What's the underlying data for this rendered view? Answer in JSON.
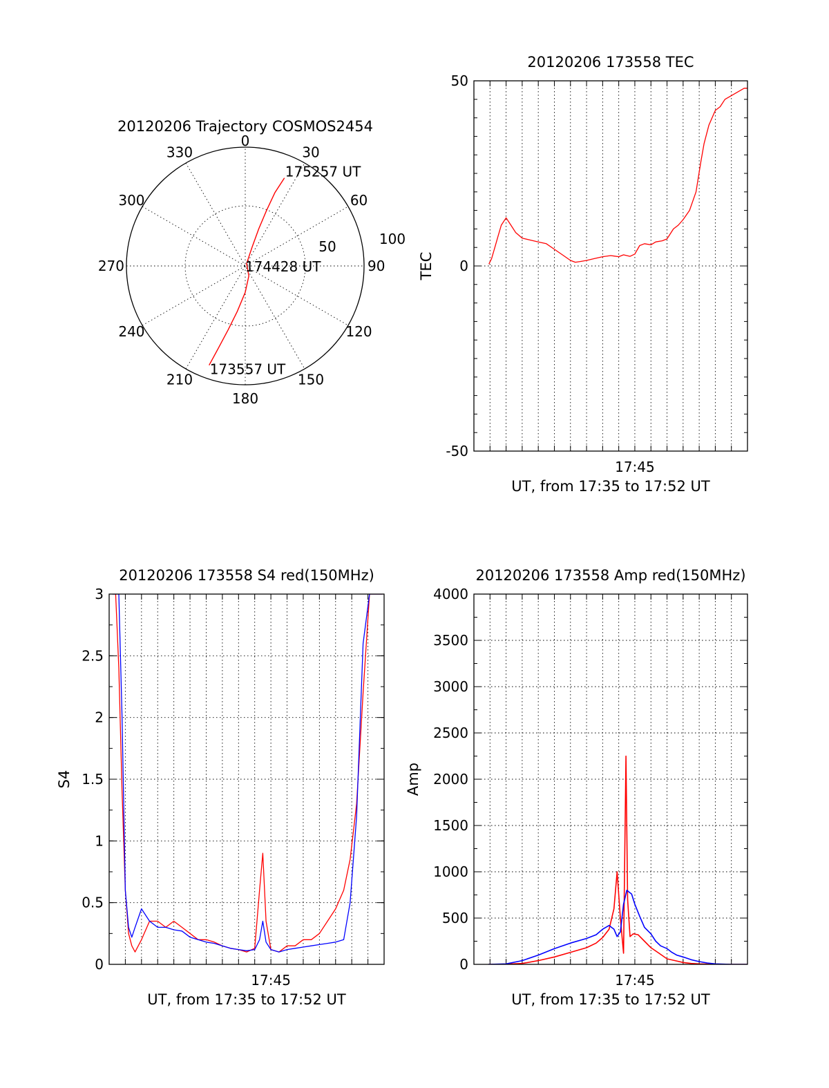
{
  "chart_data": [
    {
      "type": "polar",
      "title": "20120206 Trajectory COSMOS2454",
      "angle_labels": [
        "0",
        "30",
        "60",
        "90",
        "120",
        "150",
        "180",
        "210",
        "240",
        "270",
        "300",
        "330"
      ],
      "radial_labels": [
        "50",
        "100"
      ],
      "grid": true,
      "series": [
        {
          "color": "#ff0000",
          "points": [
            {
              "azimuth": 200,
              "elevation": 10
            },
            {
              "azimuth": 198,
              "elevation": 25
            },
            {
              "azimuth": 195,
              "elevation": 40
            },
            {
              "azimuth": 190,
              "elevation": 55
            },
            {
              "azimuth": 180,
              "elevation": 70
            },
            {
              "azimuth": 160,
              "elevation": 82
            },
            {
              "azimuth": 30,
              "elevation": 88
            },
            {
              "azimuth": 20,
              "elevation": 75
            },
            {
              "azimuth": 20,
              "elevation": 60
            },
            {
              "azimuth": 21,
              "elevation": 45
            },
            {
              "azimuth": 22,
              "elevation": 30
            },
            {
              "azimuth": 24,
              "elevation": 17
            }
          ]
        }
      ],
      "annotations": [
        {
          "text": "175257 UT",
          "azimuth": 24,
          "elevation": 17
        },
        {
          "text": "174428 UT",
          "azimuth": 90,
          "elevation": 89
        },
        {
          "text": "173557 UT",
          "azimuth": 200,
          "elevation": 10
        }
      ]
    },
    {
      "type": "line",
      "title": "20120206 173558 TEC",
      "xlabel": "UT, from 17:35 to 17:52 UT",
      "ylabel": "TEC",
      "x_ticks": [
        {
          "value": 45,
          "label": "17:45"
        }
      ],
      "y_ticks": [
        {
          "value": -50,
          "label": "-50"
        },
        {
          "value": 0,
          "label": "0"
        },
        {
          "value": 50,
          "label": "50"
        }
      ],
      "xlim": [
        35,
        52
      ],
      "ylim": [
        -50,
        50
      ],
      "grid": true,
      "series": [
        {
          "color": "#ff0000",
          "x": [
            35.93,
            36.1,
            36.3,
            36.5,
            36.7,
            37.0,
            37.3,
            37.6,
            38.0,
            38.5,
            39.0,
            39.5,
            40.0,
            40.5,
            41.0,
            41.3,
            41.6,
            42.0,
            42.5,
            43.0,
            43.5,
            44.0,
            44.3,
            44.7,
            45.0,
            45.3,
            45.6,
            46.0,
            46.3,
            46.7,
            47.0,
            47.4,
            47.7,
            48.0,
            48.4,
            48.8,
            49.1,
            49.3,
            49.6,
            50.0,
            50.3,
            50.6,
            51.0,
            51.4,
            51.8,
            52.0
          ],
          "y": [
            0.5,
            2,
            5,
            8,
            11,
            13,
            11,
            9,
            7.5,
            7,
            6.5,
            6,
            4.5,
            3,
            1.5,
            1,
            1.2,
            1.5,
            2,
            2.5,
            2.8,
            2.5,
            3,
            2.6,
            3.2,
            5.5,
            6,
            5.7,
            6.5,
            6.8,
            7.3,
            10,
            11,
            12.5,
            15,
            20,
            28,
            33,
            38,
            42,
            43,
            45,
            46,
            47,
            48,
            48
          ]
        }
      ]
    },
    {
      "type": "line",
      "title": "20120206 173558 S4 red(150MHz)",
      "xlabel": "UT, from 17:35 to 17:52 UT",
      "ylabel": "S4",
      "x_ticks": [
        {
          "value": 45,
          "label": "17:45"
        }
      ],
      "y_ticks": [
        {
          "value": 0,
          "label": "0"
        },
        {
          "value": 0.5,
          "label": "0.5"
        },
        {
          "value": 1,
          "label": "1"
        },
        {
          "value": 1.5,
          "label": "1.5"
        },
        {
          "value": 2,
          "label": "2"
        },
        {
          "value": 2.5,
          "label": "2.5"
        },
        {
          "value": 3,
          "label": "3"
        }
      ],
      "xlim": [
        35,
        52
      ],
      "ylim": [
        0,
        3
      ],
      "grid": true,
      "series": [
        {
          "color": "#ff0000",
          "x": [
            35.2,
            35.4,
            35.6,
            35.8,
            36.0,
            36.2,
            36.4,
            36.6,
            37.0,
            37.5,
            38.0,
            38.5,
            39.0,
            39.5,
            40.0,
            40.5,
            41.0,
            41.5,
            42.0,
            42.5,
            43.0,
            43.5,
            44.0,
            44.3,
            44.5,
            44.7,
            45.0,
            45.5,
            46.0,
            46.5,
            47.0,
            47.5,
            48.0,
            48.5,
            49.0,
            49.5,
            49.9,
            50.3,
            50.7,
            51.1,
            51.5,
            51.9
          ],
          "y": [
            3.0,
            3.0,
            2.4,
            1.4,
            0.6,
            0.25,
            0.15,
            0.1,
            0.2,
            0.35,
            0.35,
            0.3,
            0.35,
            0.3,
            0.25,
            0.2,
            0.2,
            0.18,
            0.15,
            0.13,
            0.12,
            0.1,
            0.13,
            0.6,
            0.9,
            0.35,
            0.12,
            0.1,
            0.15,
            0.15,
            0.2,
            0.2,
            0.25,
            0.35,
            0.45,
            0.6,
            0.85,
            1.3,
            2.2,
            3.0,
            3.0,
            3.0
          ]
        },
        {
          "color": "#0000ff",
          "x": [
            35.2,
            35.4,
            35.6,
            35.8,
            36.0,
            36.2,
            36.4,
            36.6,
            37.0,
            37.5,
            38.0,
            38.5,
            39.0,
            39.5,
            40.0,
            40.5,
            41.0,
            41.5,
            42.0,
            42.5,
            43.0,
            43.5,
            44.0,
            44.3,
            44.5,
            44.7,
            45.0,
            45.5,
            46.0,
            46.5,
            47.0,
            47.5,
            48.0,
            48.5,
            49.0,
            49.5,
            49.9,
            50.3,
            50.7,
            51.1,
            51.5,
            51.9
          ],
          "y": [
            3.0,
            3.0,
            3.0,
            2.0,
            0.6,
            0.3,
            0.22,
            0.3,
            0.45,
            0.35,
            0.3,
            0.3,
            0.28,
            0.27,
            0.22,
            0.2,
            0.18,
            0.17,
            0.15,
            0.13,
            0.12,
            0.11,
            0.12,
            0.2,
            0.35,
            0.18,
            0.12,
            0.1,
            0.12,
            0.13,
            0.14,
            0.15,
            0.16,
            0.17,
            0.18,
            0.2,
            0.5,
            1.2,
            2.6,
            3.0,
            3.0,
            3.0
          ]
        }
      ]
    },
    {
      "type": "line",
      "title": "20120206 173558 Amp red(150MHz)",
      "xlabel": "UT, from 17:35 to 17:52 UT",
      "ylabel": "Amp",
      "x_ticks": [
        {
          "value": 45,
          "label": "17:45"
        }
      ],
      "y_ticks": [
        {
          "value": 0,
          "label": "0"
        },
        {
          "value": 500,
          "label": "500"
        },
        {
          "value": 1000,
          "label": "1000"
        },
        {
          "value": 1500,
          "label": "1500"
        },
        {
          "value": 2000,
          "label": "2000"
        },
        {
          "value": 2500,
          "label": "2500"
        },
        {
          "value": 3000,
          "label": "3000"
        },
        {
          "value": 3500,
          "label": "3500"
        },
        {
          "value": 4000,
          "label": "4000"
        }
      ],
      "xlim": [
        35,
        52
      ],
      "ylim": [
        0,
        4000
      ],
      "grid": true,
      "series": [
        {
          "color": "#ff0000",
          "x": [
            35.9,
            37.0,
            38.0,
            39.0,
            40.0,
            41.0,
            42.0,
            42.6,
            43.0,
            43.4,
            43.7,
            43.9,
            44.1,
            44.3,
            44.45,
            44.55,
            44.7,
            44.9,
            45.2,
            45.6,
            46.0,
            46.5,
            47.0,
            47.5,
            48.0,
            48.5,
            49.0,
            50.0,
            51.0,
            52.0
          ],
          "y": [
            0,
            2,
            10,
            40,
            80,
            130,
            180,
            230,
            290,
            380,
            600,
            1000,
            500,
            120,
            2250,
            700,
            300,
            330,
            320,
            250,
            180,
            120,
            60,
            40,
            20,
            10,
            5,
            2,
            0,
            0
          ]
        },
        {
          "color": "#0000ff",
          "x": [
            35.9,
            37.0,
            38.0,
            39.0,
            40.0,
            41.0,
            42.0,
            42.6,
            43.0,
            43.4,
            43.7,
            43.9,
            44.1,
            44.3,
            44.5,
            44.8,
            45.0,
            45.3,
            45.6,
            46.0,
            46.3,
            46.6,
            47.0,
            47.3,
            47.6,
            48.0,
            48.5,
            49.0,
            49.5,
            50.0,
            51.0,
            52.0
          ],
          "y": [
            0,
            5,
            40,
            100,
            170,
            230,
            280,
            320,
            380,
            420,
            380,
            300,
            350,
            650,
            800,
            760,
            650,
            520,
            400,
            330,
            250,
            200,
            170,
            130,
            100,
            80,
            50,
            30,
            15,
            5,
            0,
            0
          ]
        }
      ]
    }
  ]
}
